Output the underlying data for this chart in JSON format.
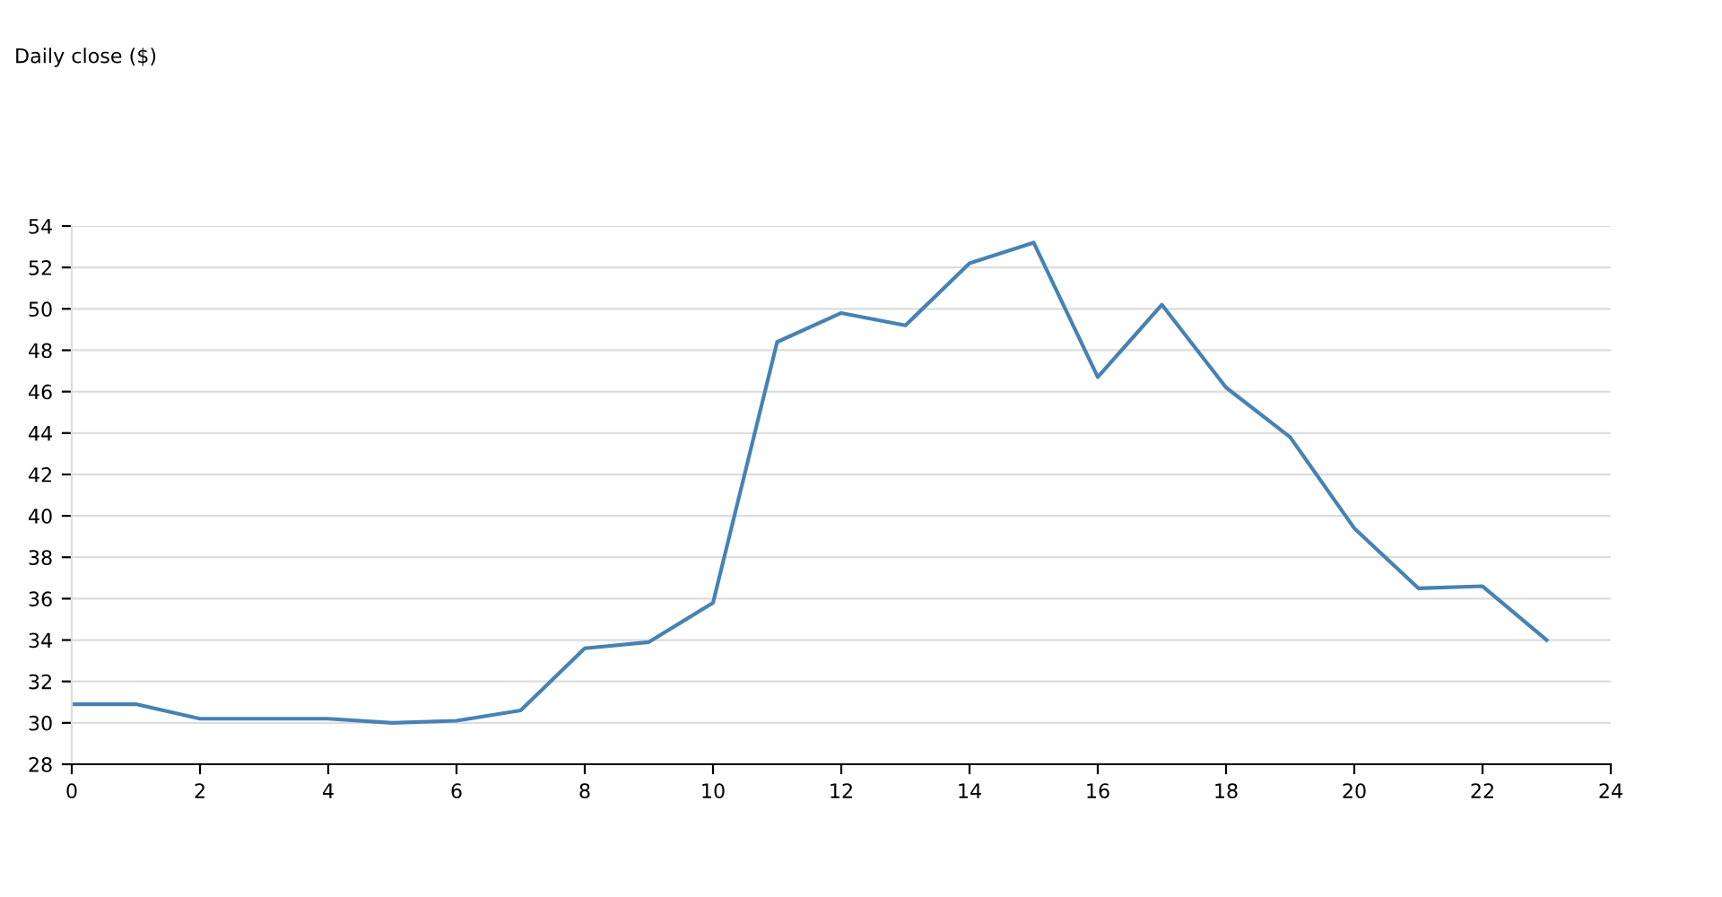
{
  "chart_data": {
    "type": "line",
    "title": "Daily close ($)",
    "x": [
      0,
      1,
      2,
      3,
      4,
      5,
      6,
      7,
      8,
      9,
      10,
      11,
      12,
      13,
      14,
      15,
      16,
      17,
      18,
      19,
      20,
      21,
      22,
      23
    ],
    "series": [
      {
        "color": "#4682b4",
        "values": [
          30.9,
          30.9,
          30.2,
          30.2,
          30.2,
          30.0,
          30.1,
          30.6,
          33.6,
          33.9,
          35.8,
          48.4,
          49.8,
          49.2,
          52.2,
          53.2,
          46.7,
          50.2,
          46.2,
          43.8,
          39.4,
          36.5,
          36.6,
          34.0
        ]
      }
    ],
    "xlim": [
      0,
      24
    ],
    "xticks": [
      0,
      2,
      4,
      6,
      8,
      10,
      12,
      14,
      16,
      18,
      20,
      22,
      24
    ],
    "ylim": [
      28,
      54
    ],
    "yticks": [
      28,
      30,
      32,
      34,
      36,
      38,
      40,
      42,
      44,
      46,
      48,
      50,
      52,
      54
    ],
    "grid": "y",
    "marker": "none",
    "line_style": "solid"
  }
}
